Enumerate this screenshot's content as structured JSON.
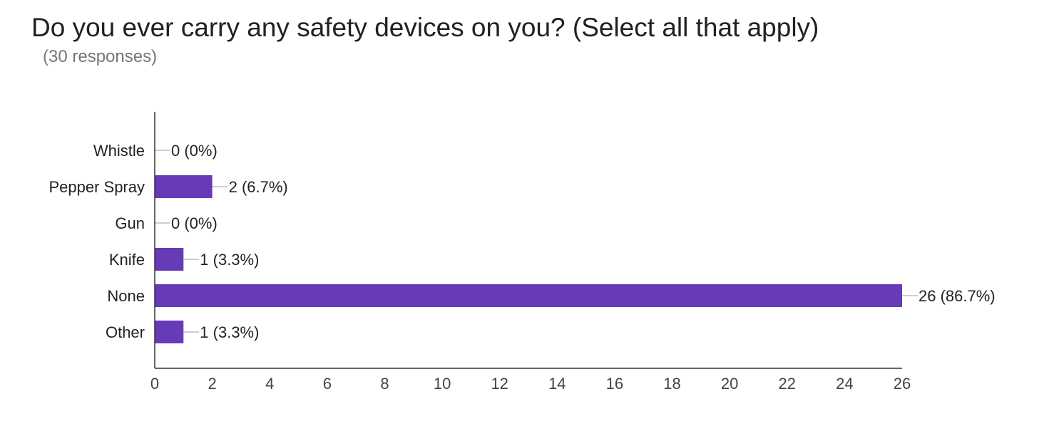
{
  "chart_data": {
    "type": "bar",
    "orientation": "horizontal",
    "title": "Do you ever carry any safety devices on you? (Select all that apply)",
    "subtitle": "(30 responses)",
    "categories": [
      "Whistle",
      "Pepper Spray",
      "Gun",
      "Knife",
      "None",
      "Other"
    ],
    "values": [
      0,
      2,
      0,
      1,
      26,
      1
    ],
    "data_labels": [
      "0 (0%)",
      "2 (6.7%)",
      "0 (0%)",
      "1 (3.3%)",
      "26 (86.7%)",
      "1 (3.3%)"
    ],
    "xlim": [
      0,
      26
    ],
    "xticks": [
      0,
      2,
      4,
      6,
      8,
      10,
      12,
      14,
      16,
      18,
      20,
      22,
      24,
      26
    ],
    "grid": false,
    "bar_color": "#673ab7"
  }
}
